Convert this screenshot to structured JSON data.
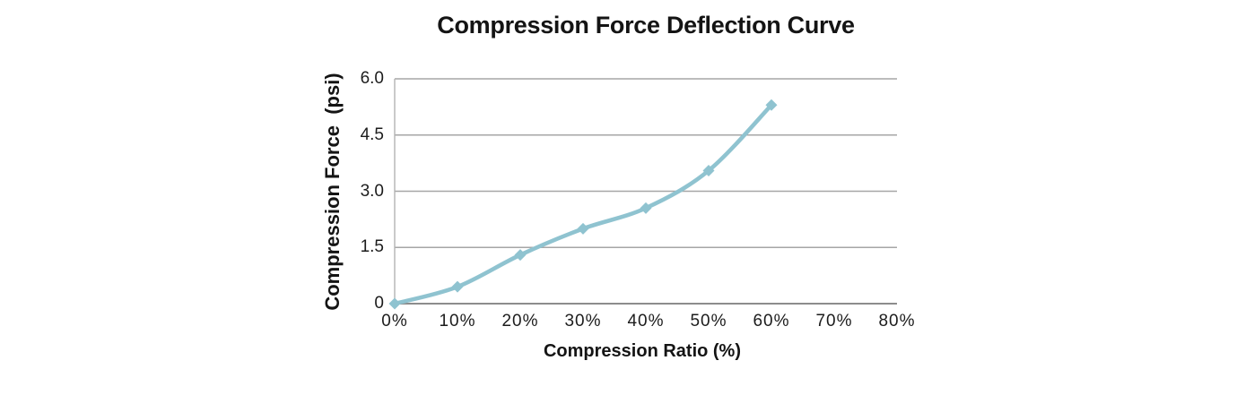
{
  "chart_data": {
    "type": "line",
    "title": "Compression Force Deflection Curve",
    "xlabel": "Compression Ratio (%)",
    "ylabel": "Compression Force  (psi)",
    "x_tick_labels": [
      "0%",
      "10%",
      "20%",
      "30%",
      "40%",
      "50%",
      "60%",
      "70%",
      "80%"
    ],
    "x_tick_values": [
      0,
      10,
      20,
      30,
      40,
      50,
      60,
      70,
      80
    ],
    "y_tick_labels": [
      "0",
      "1.5",
      "3.0",
      "4.5",
      "6.0"
    ],
    "y_tick_values": [
      0,
      1.5,
      3.0,
      4.5,
      6.0
    ],
    "xlim": [
      0,
      80
    ],
    "ylim": [
      0,
      6
    ],
    "grid": "horizontal",
    "legend": "none",
    "series": [
      {
        "name": "Compression Force",
        "x": [
          0,
          10,
          20,
          30,
          40,
          50,
          60
        ],
        "values": [
          0,
          0.45,
          1.3,
          2.0,
          2.55,
          3.55,
          5.3
        ],
        "marker": "diamond",
        "smooth": true,
        "color": "#8FC3D0"
      }
    ]
  },
  "colors": {
    "background": "#FFFFFF",
    "gridline": "#A6A6A6",
    "axis_line": "#8C8C8C",
    "plot_border": "#B3B3B3",
    "text": "#1C1C1C",
    "series_line": "#8FC3D0"
  }
}
